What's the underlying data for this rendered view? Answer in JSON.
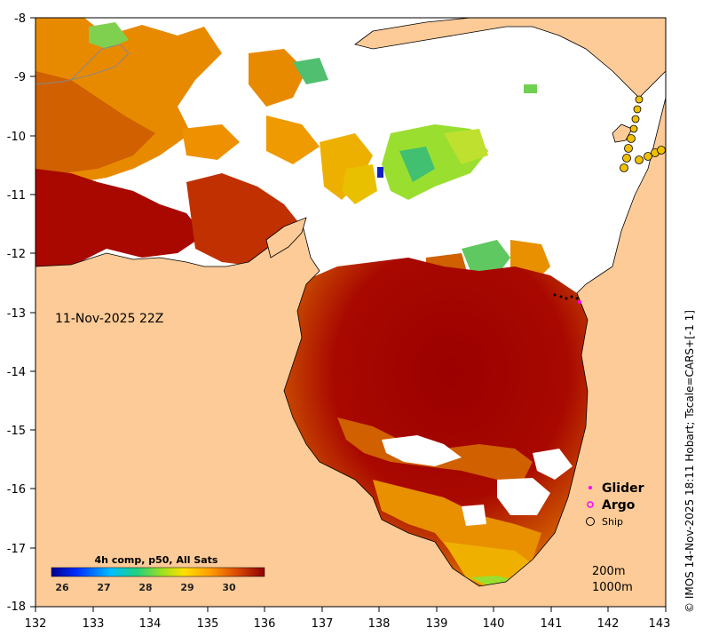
{
  "map": {
    "timestamp": "11-Nov-2025 22Z",
    "x_ticks": [
      "132",
      "133",
      "134",
      "135",
      "136",
      "137",
      "138",
      "139",
      "140",
      "141",
      "142",
      "143"
    ],
    "y_ticks": [
      "-8",
      "-9",
      "-10",
      "-11",
      "-12",
      "-13",
      "-14",
      "-15",
      "-16",
      "-17",
      "-18"
    ],
    "lon_range": [
      132,
      143
    ],
    "lat_range": [
      -18,
      -8
    ]
  },
  "legend": {
    "glider_label": "Glider",
    "argo_label": "Argo",
    "ship_label": "Ship",
    "glider_color": "#ff00ff",
    "argo_color": "#ff00ff",
    "ship_color": "#000000"
  },
  "contours": {
    "c200": "200m",
    "c1000": "1000m"
  },
  "colorbar": {
    "title": "4h comp, p50, All Sats",
    "ticks": [
      "26",
      "27",
      "28",
      "29",
      "30"
    ],
    "range": [
      25.8,
      31
    ]
  },
  "copyright": "© IMOS 14-Nov-2025 18:11 Hobart; Tscale=CARS+[-1 1]",
  "colors": {
    "land": "#fccb97",
    "sst_hot": "#9b0000",
    "sst_warm": "#d45500",
    "sst_mid": "#ee9000",
    "sst_cool": "#88e040"
  }
}
